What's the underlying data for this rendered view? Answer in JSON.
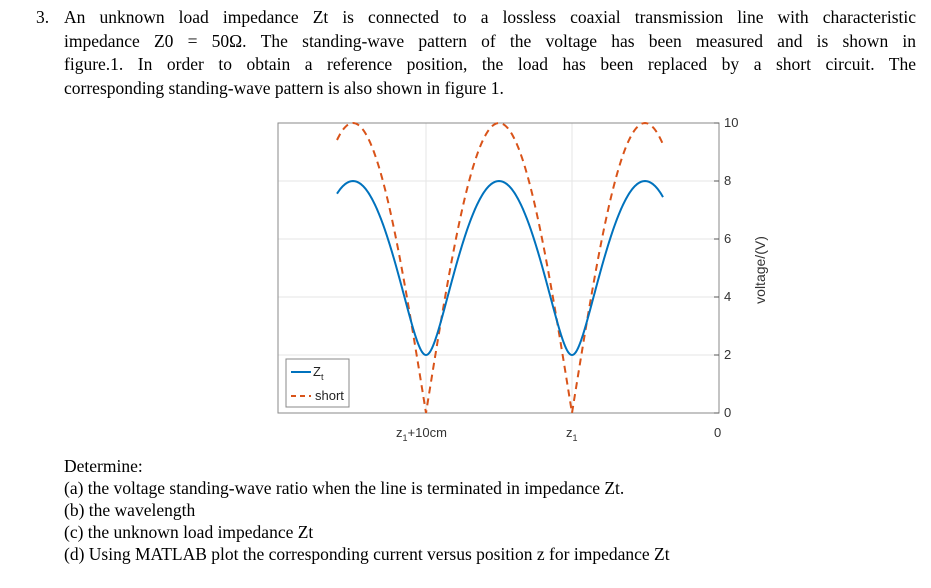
{
  "problem": {
    "number": "3.",
    "lines": [
      "An unknown load impedance Zt is connected to a lossless coaxial transmission line with characteristic",
      "impedance Z0 = 50Ω. The standing-wave pattern of the voltage has been measured and is shown in",
      "figure.1. In order to obtain a reference position, the load has been replaced by a short circuit. The",
      "corresponding standing-wave pattern is also shown in figure 1."
    ]
  },
  "figure": {
    "ylabel": "voltage/(V)",
    "yticks": [
      "0",
      "2",
      "4",
      "6",
      "8",
      "10"
    ],
    "xticks": [
      "z1+10cm",
      "z1",
      "0"
    ],
    "legend": [
      {
        "label": "Zt",
        "style": "solid",
        "color": "#0072BD"
      },
      {
        "label": "short",
        "style": "dashed",
        "color": "#D95319"
      }
    ]
  },
  "chart_data": {
    "type": "line",
    "title": "",
    "xlabel": "",
    "ylabel": "voltage/(V)",
    "ylim": [
      0,
      10
    ],
    "y_axis_position": "right",
    "grid": true,
    "legend_position": "lower-left",
    "xtick_labels": [
      "z1+10cm",
      "z1",
      "0"
    ],
    "series": [
      {
        "name": "Zt",
        "style": "solid",
        "color": "#0072BD",
        "max": 8,
        "min": 2,
        "minima_at": [
          "z1+10cm",
          "z1"
        ],
        "half_wavelength_cm": 10
      },
      {
        "name": "short",
        "style": "dashed",
        "color": "#D95319",
        "max": 10,
        "min": 0,
        "minima_at": [
          "z1+10cm",
          "z1"
        ],
        "half_wavelength_cm": 10
      }
    ]
  },
  "determine": {
    "title": "Determine:",
    "items": [
      "(a) the voltage standing-wave ratio when the line is terminated in impedance Zt.",
      "(b) the wavelength",
      "(c) the unknown load impedance Zt",
      "(d) Using MATLAB plot the corresponding current versus position z for impedance Zt"
    ]
  }
}
